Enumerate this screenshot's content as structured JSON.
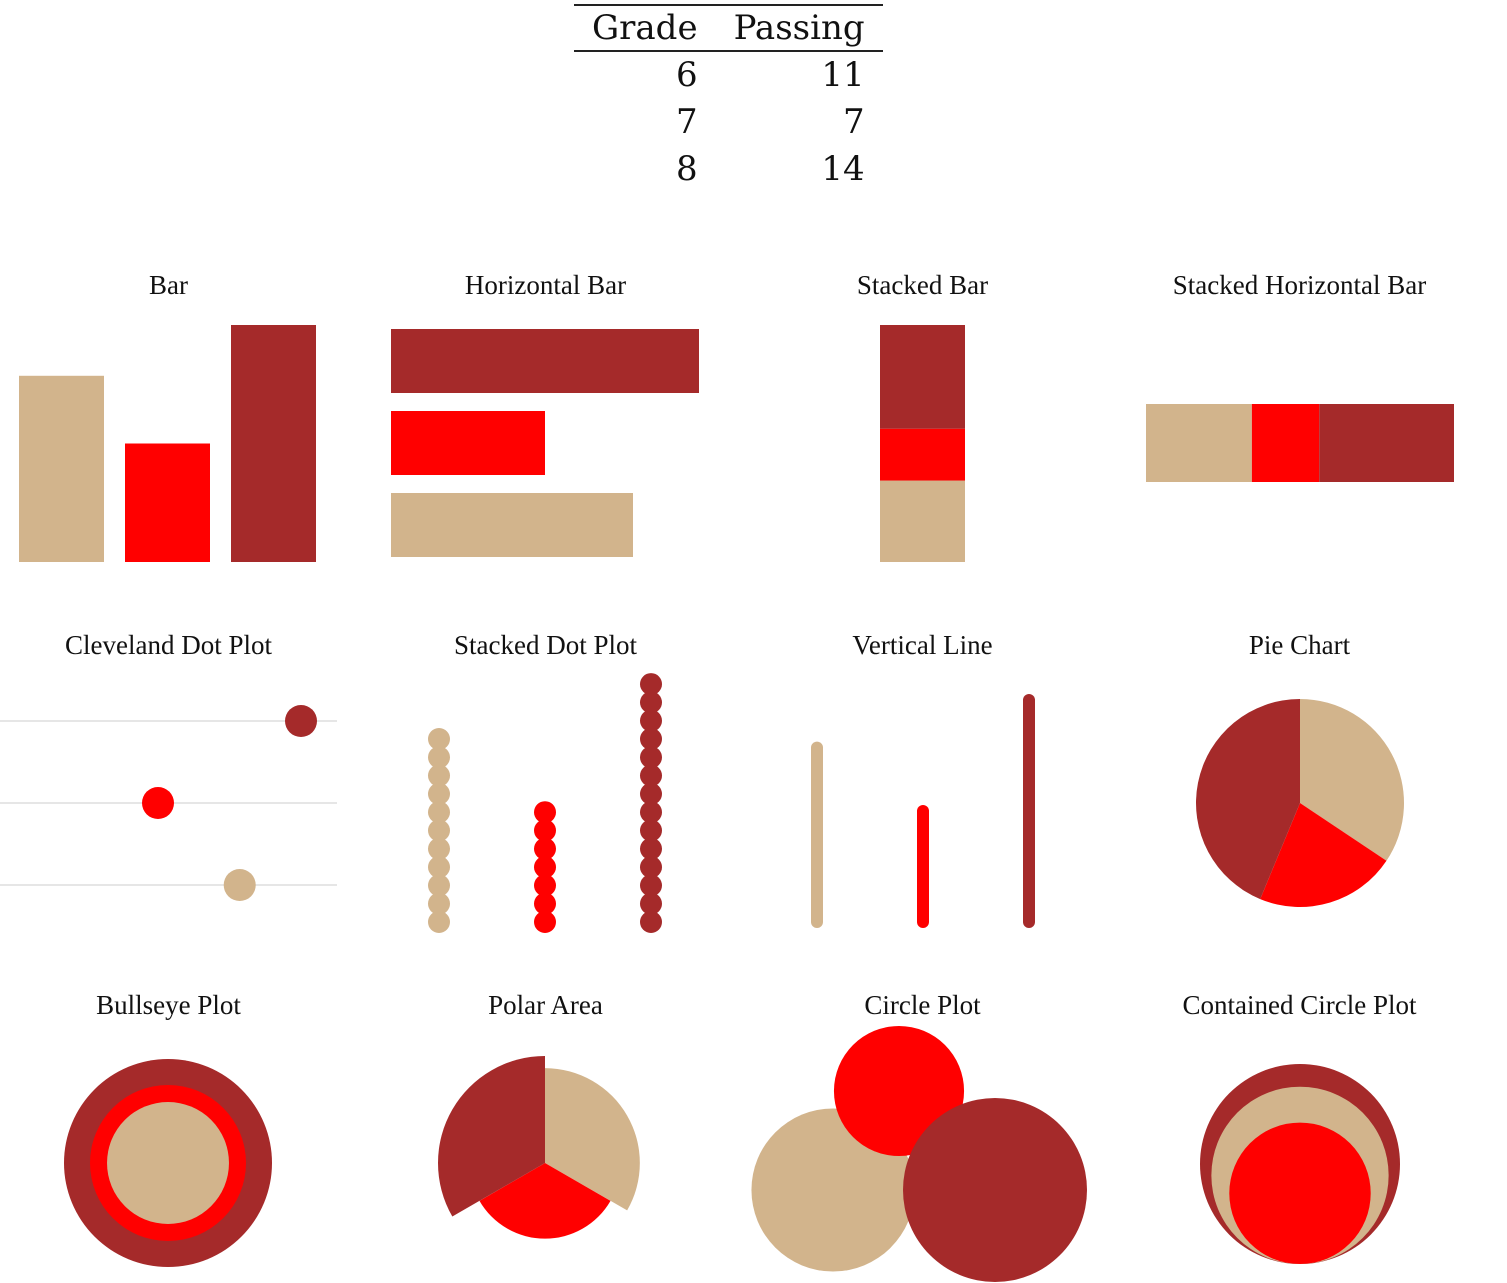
{
  "table": {
    "headers": [
      "Grade",
      "Passing"
    ],
    "rows": [
      [
        "6",
        "11"
      ],
      [
        "7",
        "7"
      ],
      [
        "8",
        "14"
      ]
    ]
  },
  "colors": [
    "#d2b48c",
    "#ff0000",
    "#a52a2a"
  ],
  "panels": [
    "Bar",
    "Horizontal Bar",
    "Stacked Bar",
    "Stacked Horizontal Bar",
    "Cleveland Dot Plot",
    "Stacked Dot Plot",
    "Vertical Line",
    "Pie Chart",
    "Bullseye Plot",
    "Polar Area",
    "Circle Plot",
    "Contained Circle Plot"
  ],
  "chart_data": {
    "type": "bar",
    "categories": [
      "6",
      "7",
      "8"
    ],
    "values": [
      11,
      7,
      14
    ],
    "xlabel": "Grade",
    "ylabel": "Passing"
  }
}
